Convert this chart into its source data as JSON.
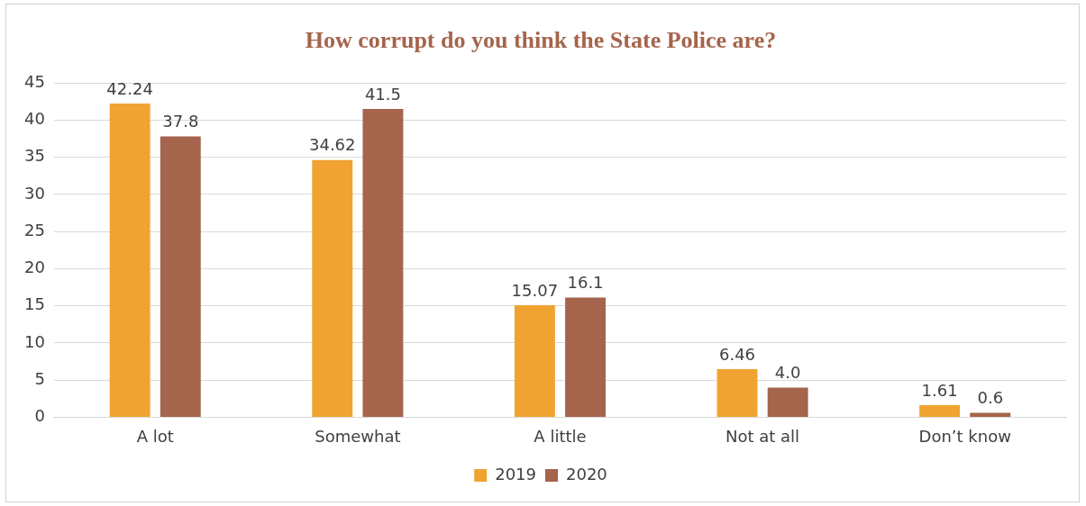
{
  "chart_data": {
    "type": "bar",
    "title": "How corrupt do you think the State Police are?",
    "categories": [
      "A lot",
      "Somewhat",
      "A little",
      "Not at all",
      "Don’t know"
    ],
    "series": [
      {
        "name": "2019",
        "color": "#f0a330",
        "values": [
          42.24,
          34.62,
          15.07,
          6.46,
          1.61
        ],
        "value_labels": [
          "42.24",
          "34.62",
          "15.07",
          "6.46",
          "1.61"
        ]
      },
      {
        "name": "2020",
        "color": "#a5644c",
        "values": [
          37.8,
          41.5,
          16.1,
          4.0,
          0.6
        ],
        "value_labels": [
          "37.8",
          "41.5",
          "16.1",
          "4.0",
          "0.6"
        ]
      }
    ],
    "ylim": [
      0,
      45
    ],
    "yticks": [
      0,
      5,
      10,
      15,
      20,
      25,
      30,
      35,
      40,
      45
    ],
    "grid": "y",
    "legend": "bottom"
  }
}
